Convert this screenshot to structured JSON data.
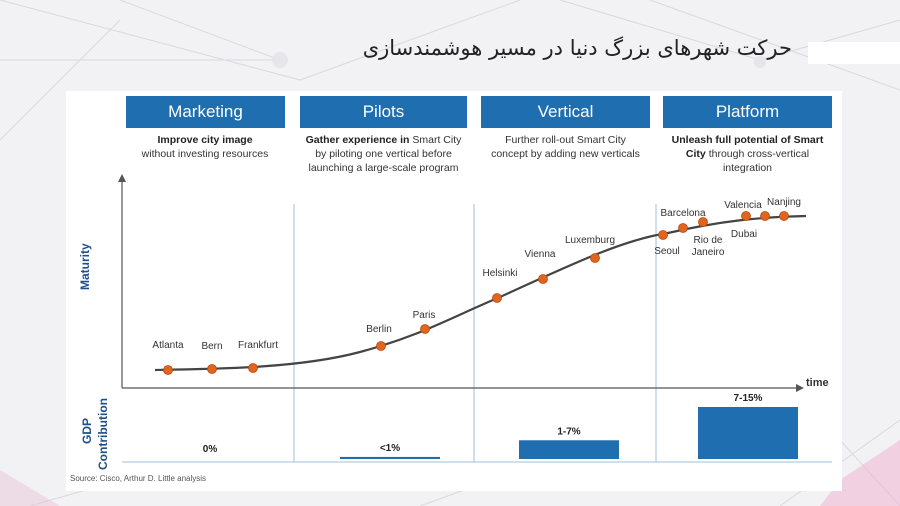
{
  "title": "حرکت شهرهای بزرگ دنیا در مسیر هوشمندسازی",
  "phases": [
    {
      "label": "Marketing",
      "desc_bold": "Improve city image",
      "desc_rest": "without investing resources"
    },
    {
      "label": "Pilots",
      "desc_bold": "Gather experience in",
      "desc_rest": "Smart City by piloting one vertical before launching a large-scale program"
    },
    {
      "label": "Vertical",
      "desc_bold": "",
      "desc_rest": "Further roll-out Smart City concept by adding new verticals"
    },
    {
      "label": "Platform",
      "desc_bold": "Unleash full potential of Smart City",
      "desc_rest": "through cross-vertical integration"
    }
  ],
  "axes": {
    "x_label": "time",
    "y_label": "Maturity",
    "gdp_label_1": "GDP",
    "gdp_label_2": "Contribution"
  },
  "cities": [
    "Atlanta",
    "Bern",
    "Frankfurt",
    "Berlin",
    "Paris",
    "Helsinki",
    "Vienna",
    "Luxemburg",
    "Seoul",
    "Barcelona",
    "Rio de Janeiro",
    "Dubai",
    "Valencia",
    "Nanjing"
  ],
  "gdp": [
    {
      "label": "0%",
      "level": 0
    },
    {
      "label": "<1%",
      "level": 0.04
    },
    {
      "label": "1-7%",
      "level": 0.36
    },
    {
      "label": "7-15%",
      "level": 1.0
    }
  ],
  "source": "Source: Cisco, Arthur D. Little analysis",
  "colors": {
    "phase": "#1f6eb0",
    "curve": "#444444",
    "dot": "#e0651f",
    "axis_label": "#1f4f8a",
    "bar": "#1f6eb0"
  }
}
